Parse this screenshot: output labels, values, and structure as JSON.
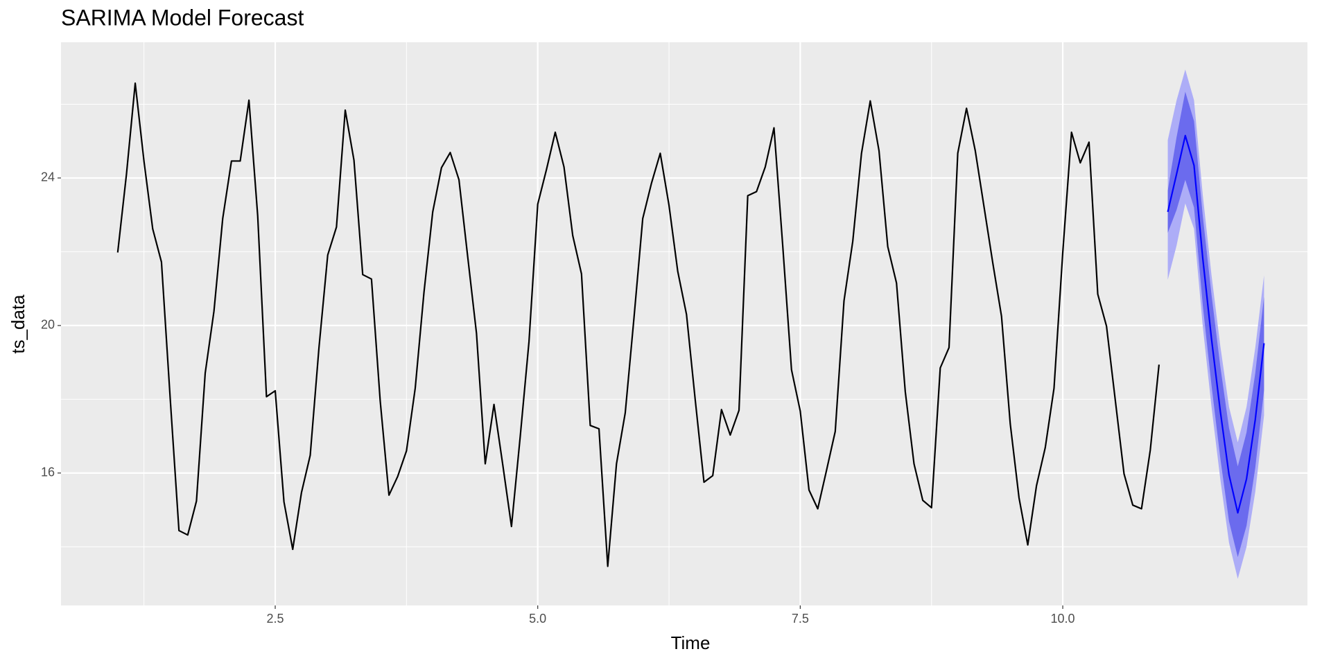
{
  "chart_data": {
    "type": "line",
    "title": "SARIMA Model Forecast",
    "x_label": "Time",
    "y_label": "ts_data",
    "xlim": [
      0.46,
      12.33
    ],
    "ylim": [
      12.41,
      27.68
    ],
    "xticks": [
      2.5,
      {
        "value": 5,
        "label": "5.0"
      },
      7.5,
      {
        "value": 10,
        "label": "10.0"
      }
    ],
    "yticks": [
      16,
      20,
      24
    ],
    "xminor": [
      1.25,
      3.75,
      6.25,
      8.75
    ],
    "yminor": [
      14,
      18,
      22,
      26
    ],
    "grid": true,
    "background": "#ebebeb",
    "series": [
      {
        "color": "#000000",
        "x": [
          1,
          1.0833,
          1.1667,
          1.25,
          1.3333,
          1.4167,
          1.5,
          1.5833,
          1.6667,
          1.75,
          1.8333,
          1.9167,
          2,
          2.0833,
          2.1667,
          2.25,
          2.3333,
          2.4167,
          2.5,
          2.5833,
          2.6667,
          2.75,
          2.8333,
          2.9167,
          3,
          3.0833,
          3.1667,
          3.25,
          3.3333,
          3.4167,
          3.5,
          3.5833,
          3.6667,
          3.75,
          3.8333,
          3.9167,
          4,
          4.0833,
          4.1667,
          4.25,
          4.3333,
          4.4167,
          4.5,
          4.5833,
          4.6667,
          4.75,
          4.8333,
          4.9167,
          5,
          5.0833,
          5.1667,
          5.25,
          5.3333,
          5.4167,
          5.5,
          5.5833,
          5.6667,
          5.75,
          5.8333,
          5.9167,
          6,
          6.0833,
          6.1667,
          6.25,
          6.3333,
          6.4167,
          6.5,
          6.5833,
          6.6667,
          6.75,
          6.8333,
          6.9167,
          7,
          7.0833,
          7.1667,
          7.25,
          7.3333,
          7.4167,
          7.5,
          7.5833,
          7.6667,
          7.75,
          7.8333,
          7.9167,
          8,
          8.0833,
          8.1667,
          8.25,
          8.3333,
          8.4167,
          8.5,
          8.5833,
          8.6667,
          8.75,
          8.8333,
          8.9167,
          9,
          9.0833,
          9.1667,
          9.25,
          9.3333,
          9.4167,
          9.5,
          9.5833,
          9.6667,
          9.75,
          9.8333,
          9.9167,
          10,
          10.0833,
          10.1667,
          10.25,
          10.3333,
          10.4167,
          10.5,
          10.5833,
          10.6667,
          10.75,
          10.8333,
          10.9167
        ],
        "values": [
          21.98,
          24.1,
          26.57,
          24.46,
          22.62,
          21.72,
          18.02,
          14.44,
          14.32,
          15.24,
          18.71,
          20.39,
          22.9,
          24.46,
          24.46,
          26.11,
          22.97,
          18.07,
          18.23,
          15.22,
          13.93,
          15.47,
          16.48,
          19.4,
          21.91,
          22.67,
          25.84,
          24.48,
          21.38,
          21.26,
          17.95,
          15.4,
          15.91,
          16.6,
          18.3,
          20.9,
          23.08,
          24.28,
          24.69,
          23.95,
          21.86,
          19.79,
          16.25,
          17.86,
          16.23,
          14.55,
          16.99,
          19.56,
          23.29,
          24.23,
          25.24,
          24.3,
          22.44,
          21.4,
          17.29,
          17.2,
          13.47,
          16.25,
          17.63,
          20.21,
          22.9,
          23.86,
          24.67,
          23.26,
          21.47,
          20.3,
          17.98,
          15.75,
          15.93,
          17.72,
          17.03,
          17.7,
          23.52,
          23.63,
          24.3,
          25.36,
          22.16,
          18.8,
          17.68,
          15.54,
          15.03,
          16.07,
          17.13,
          20.67,
          22.28,
          24.67,
          26.09,
          24.74,
          22.14,
          21.15,
          18.21,
          16.25,
          15.26,
          15.06,
          18.85,
          19.4,
          24.67,
          25.89,
          24.74,
          23.22,
          21.7,
          20.25,
          17.33,
          15.33,
          14.05,
          15.66,
          16.69,
          18.3,
          21.98,
          25.24,
          24.41,
          24.97,
          20.85,
          19.98,
          17.98,
          15.98,
          15.13,
          15.03,
          16.62,
          18.94
        ]
      },
      {
        "color": "#0000ff",
        "x": [
          11,
          11.0833,
          11.1667,
          11.25,
          11.3333,
          11.4167,
          11.5,
          11.5833,
          11.6667,
          11.75,
          11.8333,
          11.9167
        ],
        "values": [
          23.08,
          24.1,
          25.15,
          24.34,
          21.82,
          19.63,
          17.68,
          15.95,
          14.92,
          15.84,
          17.45,
          19.52
        ]
      }
    ],
    "bands": [
      {
        "color": "#adadf7",
        "x": [
          11,
          11.0833,
          11.1667,
          11.25,
          11.3333,
          11.4167,
          11.5,
          11.5833,
          11.6667,
          11.75,
          11.8333,
          11.9167
        ],
        "upper": [
          25.03,
          26.1,
          26.94,
          26.11,
          23.54,
          21.36,
          19.45,
          17.79,
          16.83,
          17.79,
          19.4,
          21.36
        ],
        "lower": [
          21.24,
          22.16,
          23.31,
          22.62,
          19.98,
          17.79,
          15.84,
          14.11,
          13.13,
          14.0,
          15.49,
          17.56
        ]
      },
      {
        "color": "#6b6bee",
        "x": [
          11,
          11.0833,
          11.1667,
          11.25,
          11.3333,
          11.4167,
          11.5,
          11.5833,
          11.6667,
          11.75,
          11.8333,
          11.9167
        ],
        "upper": [
          23.66,
          25.1,
          26.34,
          25.54,
          22.97,
          20.83,
          18.9,
          17.22,
          16.18,
          17.1,
          18.71,
          20.78
        ],
        "lower": [
          22.51,
          23.13,
          23.95,
          23.2,
          20.55,
          18.37,
          16.41,
          14.69,
          13.72,
          14.57,
          16.14,
          18.25
        ]
      }
    ]
  }
}
